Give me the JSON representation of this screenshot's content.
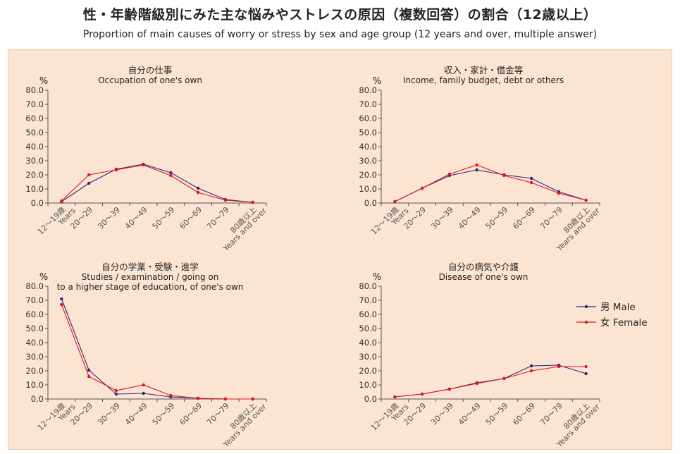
{
  "header": {
    "title_jp": "性・年齢階級別にみた主な悩みやストレスの原因（複数回答）の割合（12歳以上）",
    "title_en": "Proportion of main causes of worry or stress by sex and age group (12 years and over, multiple answer)"
  },
  "colors": {
    "male": "#2a2a7a",
    "female": "#e3141e",
    "panel": "#fbe4d2"
  },
  "legend": {
    "male": "男 Male",
    "female": "女 Female"
  },
  "chart_data": [
    {
      "type": "line",
      "title_jp": "自分の仕事",
      "title_en": [
        "Occupation of one's own"
      ],
      "ylabel": "%",
      "ylim": [
        0,
        80
      ],
      "yticks": [
        "0.0",
        "10.0",
        "20.0",
        "30.0",
        "40.0",
        "50.0",
        "60.0",
        "70.0",
        "80.0"
      ],
      "categories": [
        "12～19歳 Years",
        "20～29",
        "30～39",
        "40～49",
        "50～59",
        "60～69",
        "70～79",
        "80歳以上 Years and over"
      ],
      "series": [
        {
          "name": "男 Male",
          "values": [
            1.0,
            14.0,
            24.0,
            27.5,
            21.5,
            10.5,
            2.5,
            0.5
          ]
        },
        {
          "name": "女 Female",
          "values": [
            1.5,
            20.0,
            23.5,
            27.0,
            19.5,
            7.5,
            2.0,
            0.5
          ]
        }
      ]
    },
    {
      "type": "line",
      "title_jp": "収入・家計・借金等",
      "title_en": [
        "Income, family budget, debt or others"
      ],
      "ylabel": "%",
      "ylim": [
        0,
        80
      ],
      "yticks": [
        "0.0",
        "10.0",
        "20.0",
        "30.0",
        "40.0",
        "50.0",
        "60.0",
        "70.0",
        "80.0"
      ],
      "categories": [
        "12～19歳 Years",
        "20～29",
        "30～39",
        "40～49",
        "50～59",
        "60～69",
        "70～79",
        "80歳以上 Years and over"
      ],
      "series": [
        {
          "name": "男 Male",
          "values": [
            1.0,
            10.5,
            19.5,
            23.5,
            20.0,
            17.5,
            8.0,
            2.0
          ]
        },
        {
          "name": "女 Female",
          "values": [
            1.0,
            10.5,
            20.5,
            27.0,
            19.5,
            14.5,
            7.0,
            2.0
          ]
        }
      ]
    },
    {
      "type": "line",
      "title_jp": "自分の学業・受験・進学",
      "title_en": [
        "Studies / examination / going on",
        "to a higher stage of education, of one's own"
      ],
      "ylabel": "%",
      "ylim": [
        0,
        80
      ],
      "yticks": [
        "0.0",
        "10.0",
        "20.0",
        "30.0",
        "40.0",
        "50.0",
        "60.0",
        "70.0",
        "80.0"
      ],
      "categories": [
        "12～19歳 Years",
        "20～29",
        "30～39",
        "40～49",
        "50～59",
        "60～69",
        "70～79",
        "80歳以上 Years and over"
      ],
      "series": [
        {
          "name": "男 Male",
          "values": [
            71.0,
            20.5,
            3.5,
            4.0,
            1.5,
            0.5,
            0.0,
            0.0
          ]
        },
        {
          "name": "女 Female",
          "values": [
            67.0,
            16.0,
            6.0,
            10.0,
            2.5,
            0.5,
            0.0,
            0.0
          ]
        }
      ]
    },
    {
      "type": "line",
      "title_jp": "自分の病気や介護",
      "title_en": [
        "Disease of one's own"
      ],
      "ylabel": "%",
      "ylim": [
        0,
        80
      ],
      "yticks": [
        "0.0",
        "10.0",
        "20.0",
        "30.0",
        "40.0",
        "50.0",
        "60.0",
        "70.0",
        "80.0"
      ],
      "categories": [
        "12～19歳 Years",
        "20～29",
        "30～39",
        "40～49",
        "50～59",
        "60～69",
        "70～79",
        "80歳以上 Years and over"
      ],
      "series": [
        {
          "name": "男 Male",
          "values": [
            1.5,
            3.5,
            7.0,
            11.5,
            14.5,
            23.5,
            24.0,
            18.0
          ]
        },
        {
          "name": "女 Female",
          "values": [
            1.5,
            3.5,
            7.0,
            11.0,
            14.5,
            20.0,
            23.0,
            23.0
          ]
        }
      ]
    }
  ]
}
